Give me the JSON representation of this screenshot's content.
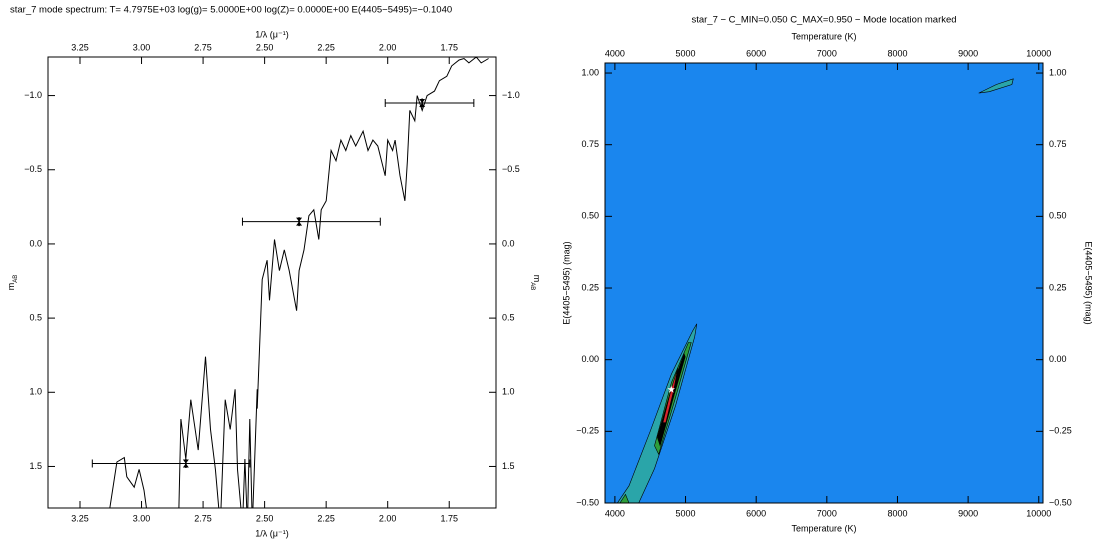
{
  "chart_data": [
    {
      "type": "line",
      "title": "star_7 mode spectrum: T= 4.7975E+03 log(g)= 5.0000E+00 log(Z)= 0.0000E+00 E(4405−5495)=−0.1040",
      "x_label": "1/λ (μ⁻¹)",
      "y_label": {
        "text": "m",
        "sub": "AB"
      },
      "xlim": [
        3.38,
        1.56
      ],
      "ylim": [
        1.78,
        -1.26
      ],
      "xticks": [
        3.25,
        {
          "value": 3.0,
          "label": "3.00"
        },
        2.75,
        {
          "value": 2.5,
          "label": "2.50"
        },
        2.25,
        {
          "value": 2.0,
          "label": "2.00"
        },
        1.75
      ],
      "yticks": [
        {
          "value": -1.0,
          "label": "−1.0"
        },
        {
          "value": -0.5,
          "label": "−0.5"
        },
        {
          "value": 0.0,
          "label": "0.0"
        },
        0.5,
        {
          "value": 1.0,
          "label": "1.0"
        },
        1.5
      ],
      "color": "#000000",
      "x": [
        3.14,
        3.1,
        3.07,
        3.06,
        3.03,
        3.01,
        2.99,
        2.97,
        2.85,
        2.84,
        2.82,
        2.8,
        2.77,
        2.74,
        2.72,
        2.7,
        2.68,
        2.66,
        2.64,
        2.62,
        2.61,
        2.59,
        2.58,
        2.57,
        2.56,
        2.55,
        2.53,
        2.53,
        2.51,
        2.49,
        2.48,
        2.46,
        2.44,
        2.42,
        2.4,
        2.37,
        2.36,
        2.34,
        2.32,
        2.3,
        2.28,
        2.27,
        2.25,
        2.23,
        2.21,
        2.19,
        2.17,
        2.15,
        2.13,
        2.1,
        2.08,
        2.06,
        2.04,
        2.01,
        2.0,
        1.98,
        1.97,
        1.95,
        1.93,
        1.92,
        1.91,
        1.89,
        1.88,
        1.86,
        1.84,
        1.81,
        1.79,
        1.76,
        1.74,
        1.71,
        1.69,
        1.67,
        1.64,
        1.62,
        1.59
      ],
      "values": [
        1.9,
        1.47,
        1.44,
        1.57,
        1.64,
        1.52,
        1.66,
        1.9,
        1.9,
        1.18,
        1.45,
        1.05,
        1.39,
        0.76,
        1.25,
        1.52,
        1.9,
        1.05,
        1.25,
        0.98,
        1.52,
        1.9,
        1.45,
        1.9,
        1.18,
        1.9,
        0.98,
        1.11,
        0.24,
        0.11,
        0.38,
        -0.03,
        0.18,
        0.04,
        0.18,
        0.45,
        0.18,
        0.04,
        -0.19,
        -0.23,
        -0.03,
        -0.23,
        -0.29,
        -0.63,
        -0.56,
        -0.7,
        -0.63,
        -0.73,
        -0.66,
        -0.76,
        -0.63,
        -0.7,
        -0.66,
        -0.46,
        -0.7,
        -0.63,
        -0.7,
        -0.46,
        -0.29,
        -0.56,
        -0.9,
        -0.83,
        -1.0,
        -0.9,
        -1.0,
        -1.03,
        -1.1,
        -1.13,
        -1.2,
        -1.24,
        -1.25,
        -1.22,
        -1.26,
        -1.22,
        -1.25
      ],
      "photometry": {
        "x": [
          2.82,
          2.36,
          1.86
        ],
        "values": [
          1.48,
          -0.15,
          -0.95
        ],
        "x_low": [
          3.2,
          2.59,
          2.01
        ],
        "x_high": [
          2.56,
          2.03,
          1.65
        ],
        "y_err": [
          0.03,
          0.03,
          0.03
        ]
      }
    },
    {
      "type": "contour",
      "title": "star_7 − C_MIN=0.050 C_MAX=0.950 − Mode location marked",
      "x_label": "Temperature (K)",
      "y_label": "E(4405−5495) (mag)",
      "xlim": [
        3860,
        10060
      ],
      "ylim": [
        -0.5,
        1.035
      ],
      "xticks": [
        4000,
        5000,
        6000,
        7000,
        8000,
        9000,
        10000
      ],
      "yticks": [
        {
          "value": -0.5,
          "label": "−0.50"
        },
        {
          "value": -0.25,
          "label": "−0.25"
        },
        {
          "value": 0.0,
          "label": "0.00"
        },
        0.25,
        {
          "value": 0.5,
          "label": "0.50"
        },
        0.75,
        {
          "value": 1.0,
          "label": "1.00"
        }
      ],
      "background_color": "#1a86ee",
      "contours": [
        {
          "color": "#2aa5a9",
          "x": [
            3980,
            4200,
            4500,
            4800,
            5100,
            5160,
            5130,
            4860,
            4560,
            4300,
            4100
          ],
          "y": [
            -0.52,
            -0.44,
            -0.25,
            -0.05,
            0.1,
            0.125,
            0.08,
            -0.16,
            -0.38,
            -0.52,
            -0.55
          ]
        },
        {
          "color": "#2aa5a9",
          "x": [
            9150,
            9400,
            9640,
            9620,
            9300
          ],
          "y": [
            0.93,
            0.96,
            0.98,
            0.96,
            0.935
          ]
        },
        {
          "color": "#2e9e3a",
          "x": [
            4560,
            4800,
            5040,
            5080,
            4850,
            4620
          ],
          "y": [
            -0.3,
            -0.08,
            0.06,
            0.06,
            -0.14,
            -0.33
          ]
        },
        {
          "color": "#2e9e3a",
          "x": [
            4020,
            4150,
            4200,
            4080
          ],
          "y": [
            -0.52,
            -0.47,
            -0.5,
            -0.53
          ]
        },
        {
          "color": "#000000",
          "x": [
            4600,
            4800,
            4980,
            4995,
            4820,
            4640
          ],
          "y": [
            -0.27,
            -0.1,
            0.02,
            0.01,
            -0.14,
            -0.3
          ]
        },
        {
          "color": "#d8262b",
          "x": [
            4680,
            4800,
            4890,
            4830,
            4720
          ],
          "y": [
            -0.22,
            -0.1,
            -0.03,
            -0.11,
            -0.22
          ]
        }
      ],
      "mode": {
        "x": 4797.5,
        "y": -0.104,
        "color": "#ffffff"
      }
    }
  ]
}
